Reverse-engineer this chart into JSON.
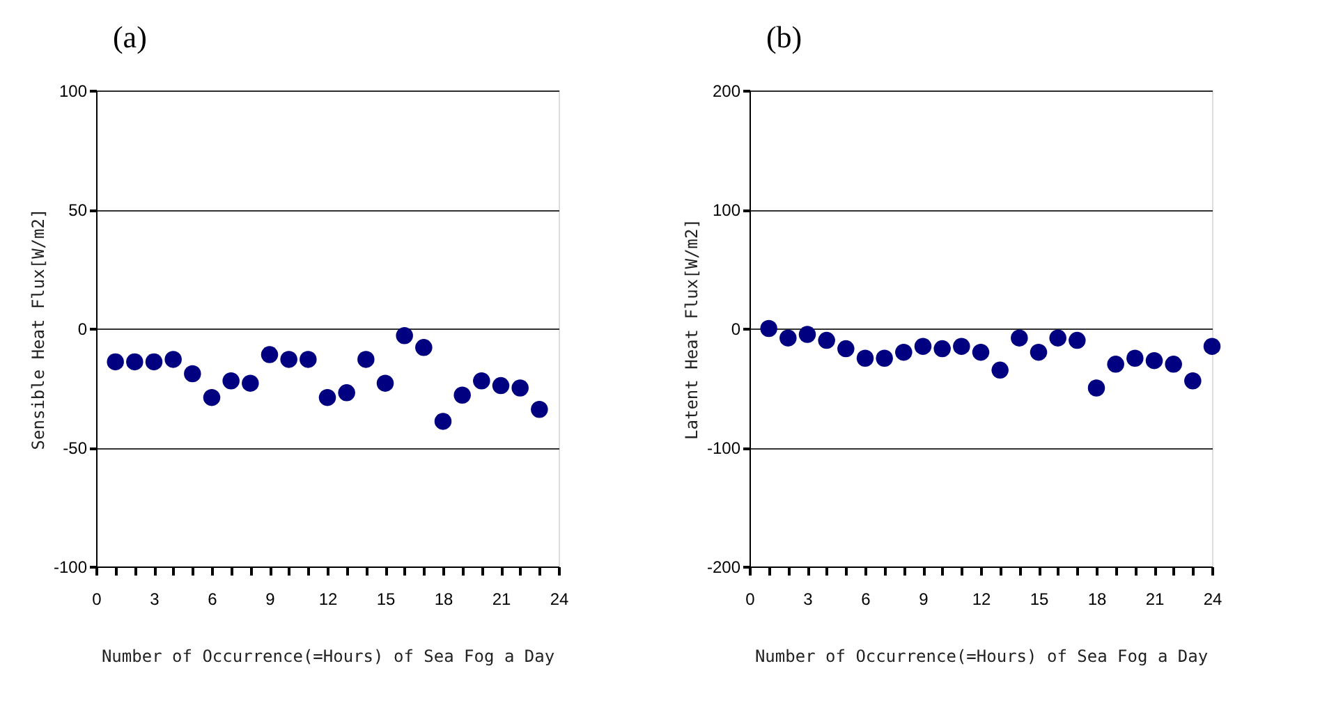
{
  "chart_data": [
    {
      "type": "scatter",
      "title": "(a)",
      "xlabel": "Number of Occurrence(=Hours) of Sea Fog a Day",
      "ylabel": "Sensible Heat Flux[W/m2]",
      "x": [
        1,
        2,
        3,
        4,
        5,
        6,
        7,
        8,
        9,
        10,
        11,
        12,
        13,
        14,
        15,
        16,
        17,
        18,
        19,
        20,
        21,
        22,
        23
      ],
      "series": [
        {
          "color": "#000080",
          "values": [
            -14,
            -14,
            -14,
            -13,
            -19,
            -29,
            -22,
            -23,
            -11,
            -13,
            -13,
            -29,
            -27,
            -13,
            -23,
            -3,
            -8,
            -39,
            -28,
            -22,
            -24,
            -25,
            -34
          ]
        }
      ],
      "xlim": [
        0,
        24
      ],
      "ylim": [
        -100,
        100
      ],
      "xticks": [
        0,
        {
          "value": 1,
          "label": null
        },
        {
          "value": 2,
          "label": null
        },
        3,
        {
          "value": 4,
          "label": null
        },
        {
          "value": 5,
          "label": null
        },
        6,
        {
          "value": 7,
          "label": null
        },
        {
          "value": 8,
          "label": null
        },
        9,
        {
          "value": 10,
          "label": null
        },
        {
          "value": 11,
          "label": null
        },
        12,
        {
          "value": 13,
          "label": null
        },
        {
          "value": 14,
          "label": null
        },
        15,
        {
          "value": 16,
          "label": null
        },
        {
          "value": 17,
          "label": null
        },
        18,
        {
          "value": 19,
          "label": null
        },
        {
          "value": 20,
          "label": null
        },
        21,
        {
          "value": 22,
          "label": null
        },
        {
          "value": 23,
          "label": null
        },
        24
      ],
      "yticks": [
        -100,
        -50,
        0,
        50,
        100
      ],
      "grid": "y",
      "marker": "circle",
      "legend": false
    },
    {
      "type": "scatter",
      "title": "(b)",
      "xlabel": "Number of Occurrence(=Hours) of Sea Fog a Day",
      "ylabel": "Latent Heat Flux[W/m2]",
      "x": [
        1,
        2,
        3,
        4,
        5,
        6,
        7,
        8,
        9,
        10,
        11,
        12,
        13,
        14,
        15,
        16,
        17,
        18,
        19,
        20,
        21,
        22,
        23,
        24
      ],
      "series": [
        {
          "color": "#000080",
          "values": [
            0,
            -8,
            -5,
            -10,
            -17,
            -25,
            -25,
            -20,
            -15,
            -17,
            -15,
            -20,
            -35,
            -8,
            -20,
            -8,
            -10,
            -50,
            -30,
            -25,
            -27,
            -30,
            -44,
            -15
          ]
        }
      ],
      "xlim": [
        0,
        24
      ],
      "ylim": [
        -200,
        200
      ],
      "xticks": [
        0,
        {
          "value": 1,
          "label": null
        },
        {
          "value": 2,
          "label": null
        },
        3,
        {
          "value": 4,
          "label": null
        },
        {
          "value": 5,
          "label": null
        },
        6,
        {
          "value": 7,
          "label": null
        },
        {
          "value": 8,
          "label": null
        },
        9,
        {
          "value": 10,
          "label": null
        },
        {
          "value": 11,
          "label": null
        },
        12,
        {
          "value": 13,
          "label": null
        },
        {
          "value": 14,
          "label": null
        },
        15,
        {
          "value": 16,
          "label": null
        },
        {
          "value": 17,
          "label": null
        },
        18,
        {
          "value": 19,
          "label": null
        },
        {
          "value": 20,
          "label": null
        },
        21,
        {
          "value": 22,
          "label": null
        },
        {
          "value": 23,
          "label": null
        },
        24
      ],
      "yticks": [
        -200,
        -100,
        0,
        100,
        200
      ],
      "grid": "y",
      "marker": "circle",
      "legend": false
    }
  ]
}
